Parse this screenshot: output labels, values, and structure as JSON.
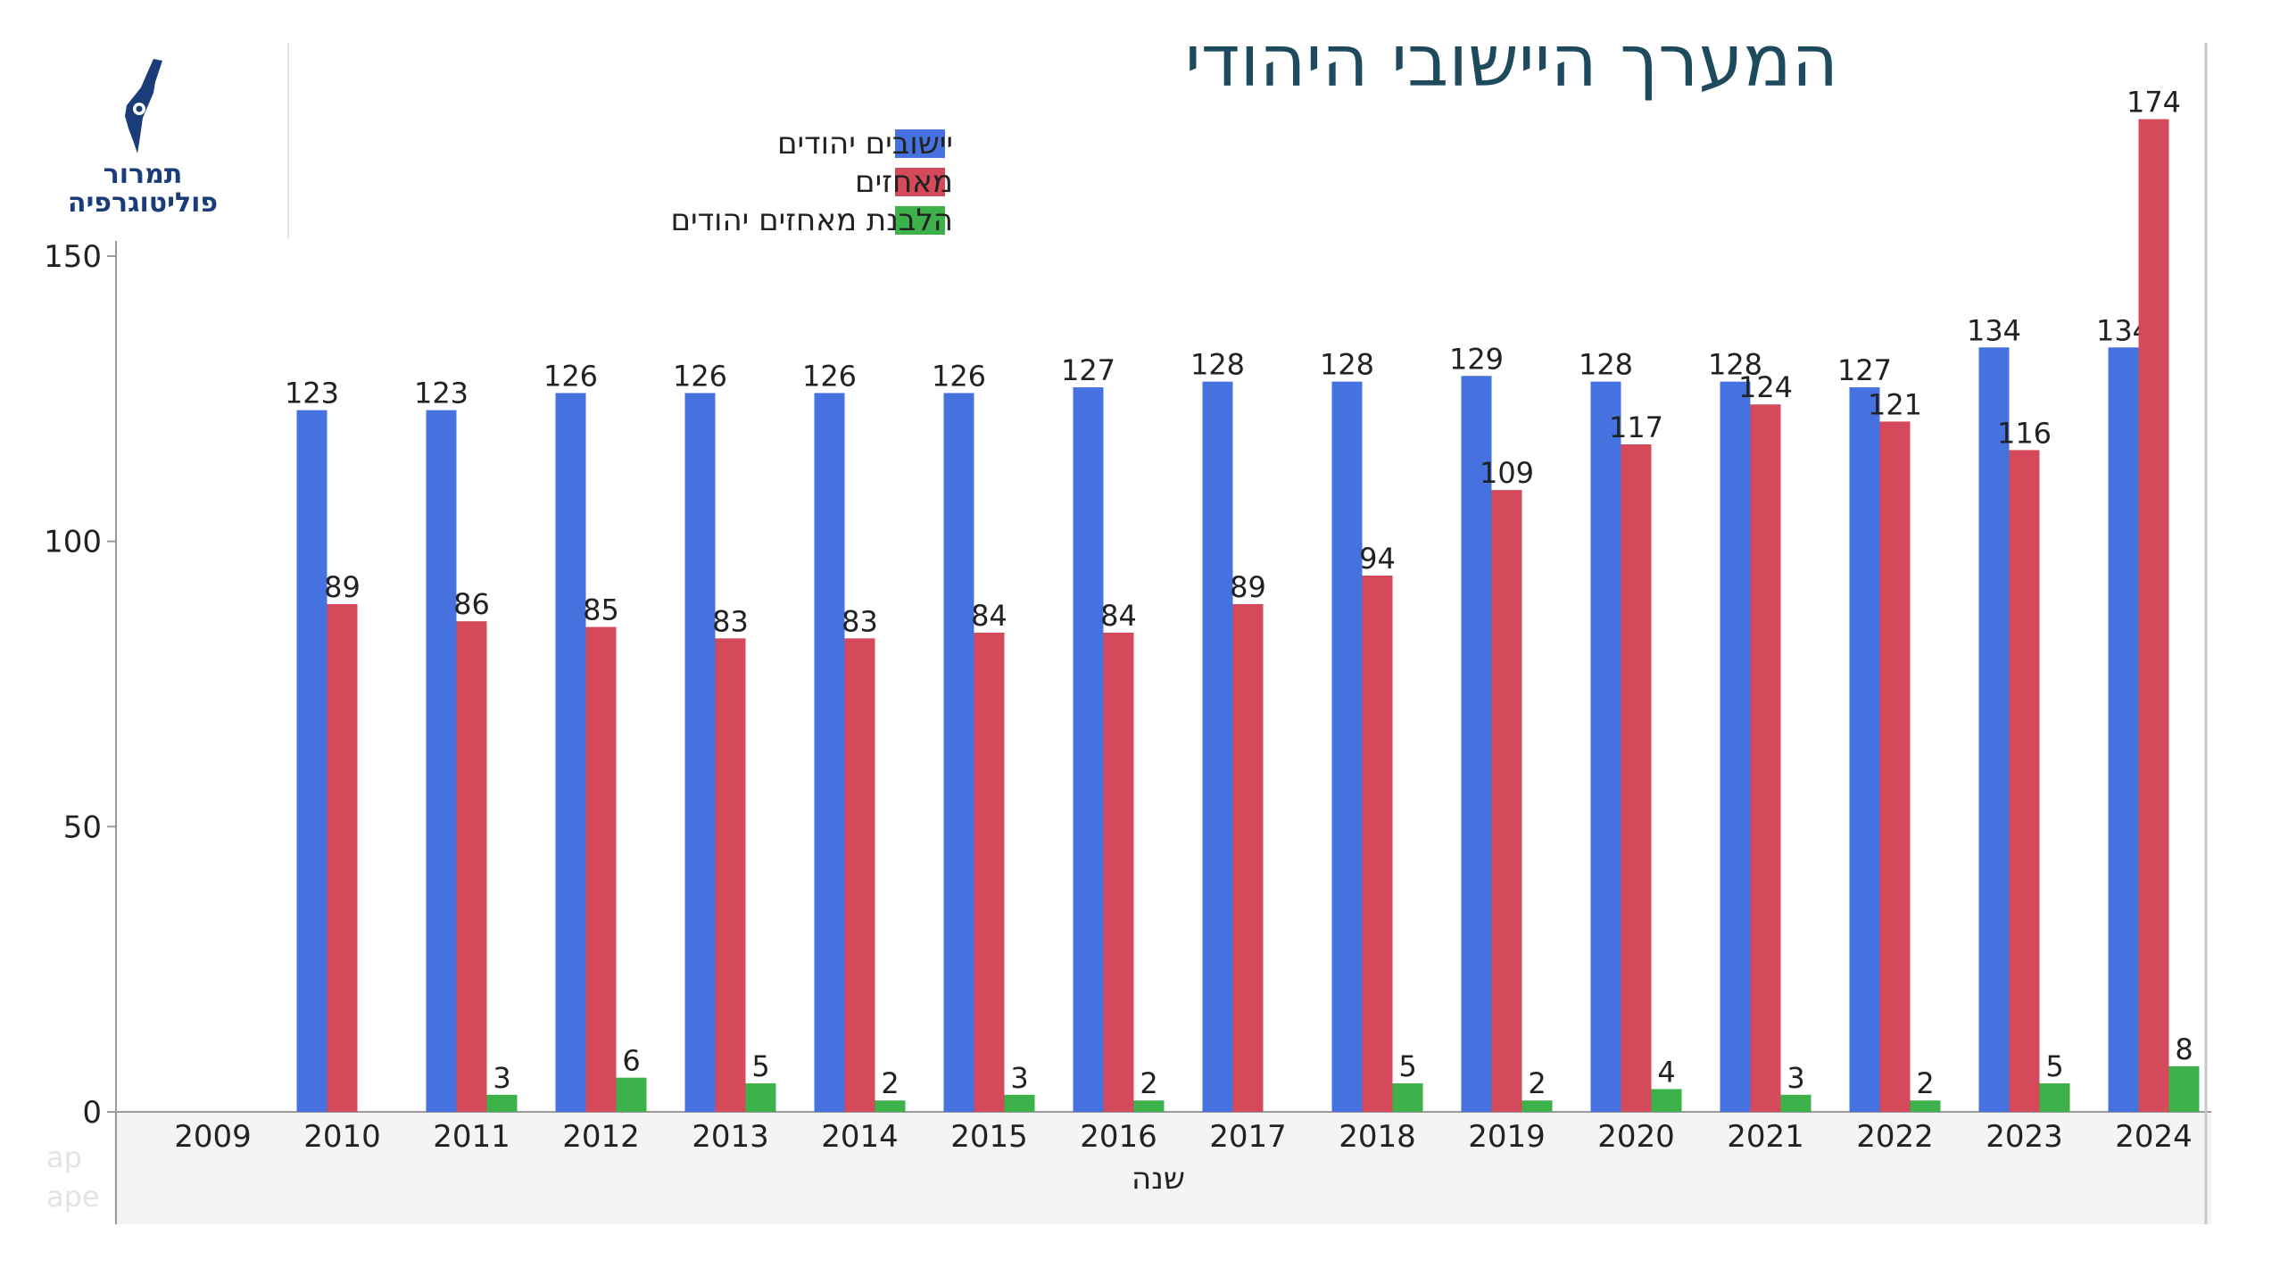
{
  "page": {
    "title": "המערך היישובי היהודי",
    "logo_line1": "תמרור",
    "logo_line2": "פוליטוגרפיה",
    "watermark_line1": "ap",
    "watermark_line2": "ape"
  },
  "colors": {
    "jewish_settlements": "#4672e0",
    "outposts": "#d44a5a",
    "legalization": "#3db24a",
    "title": "#1e4a5e",
    "logo": "#1a3d7a"
  },
  "chart_data": {
    "type": "bar",
    "title": "המערך היישובי היהודי",
    "xlabel": "שנה",
    "ylabel": "",
    "ylim": [
      0,
      150
    ],
    "yticks": [
      0,
      50,
      100,
      150
    ],
    "categories": [
      "2009",
      "2010",
      "2011",
      "2012",
      "2013",
      "2014",
      "2015",
      "2016",
      "2017",
      "2018",
      "2019",
      "2020",
      "2021",
      "2022",
      "2023",
      "2024"
    ],
    "series": [
      {
        "name": "יישובים יהודים",
        "color": "#4672e0",
        "values": [
          null,
          123,
          123,
          126,
          126,
          126,
          126,
          127,
          128,
          128,
          129,
          128,
          128,
          127,
          134,
          134
        ]
      },
      {
        "name": "מאחזים",
        "color": "#d44a5a",
        "values": [
          null,
          89,
          86,
          85,
          83,
          83,
          84,
          84,
          89,
          94,
          109,
          117,
          124,
          121,
          116,
          174
        ]
      },
      {
        "name": "הלבנת מאחזים יהודים",
        "color": "#3db24a",
        "values": [
          null,
          null,
          3,
          6,
          5,
          2,
          3,
          2,
          null,
          5,
          2,
          4,
          3,
          2,
          5,
          8
        ]
      }
    ],
    "legend_position": "top-center",
    "grid": false
  }
}
